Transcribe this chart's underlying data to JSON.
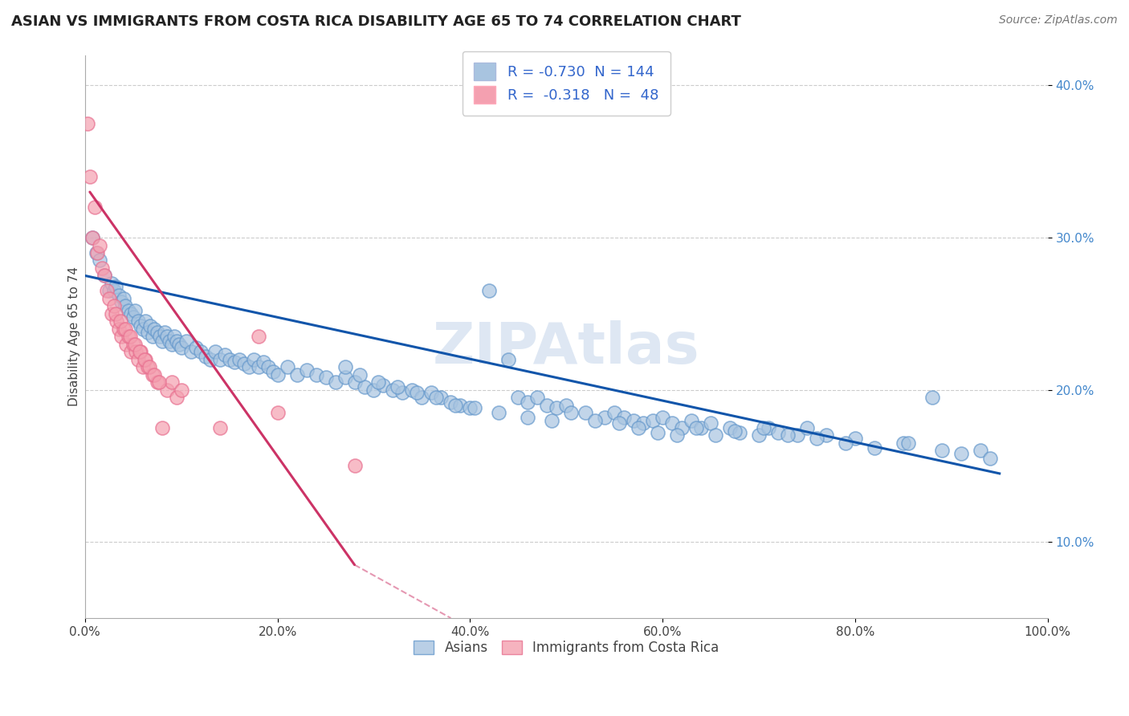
{
  "title": "ASIAN VS IMMIGRANTS FROM COSTA RICA DISABILITY AGE 65 TO 74 CORRELATION CHART",
  "source": "Source: ZipAtlas.com",
  "ylabel": "Disability Age 65 to 74",
  "xlim": [
    0,
    100
  ],
  "ylim": [
    5,
    42
  ],
  "watermark": "ZIPAtlas",
  "legend_labels": [
    "Asians",
    "Immigrants from Costa Rica"
  ],
  "legend_r_n": [
    {
      "R": "-0.730",
      "N": "144"
    },
    {
      "R": "-0.318",
      "N": "48"
    }
  ],
  "blue_color": "#A8C4E0",
  "pink_color": "#F4A0B0",
  "blue_edge_color": "#6699CC",
  "pink_edge_color": "#E87090",
  "blue_line_color": "#1155AA",
  "pink_line_color": "#CC3366",
  "blue_scatter": {
    "x": [
      0.8,
      1.2,
      1.5,
      2.0,
      2.5,
      2.8,
      3.0,
      3.2,
      3.5,
      3.8,
      4.0,
      4.2,
      4.5,
      4.8,
      5.0,
      5.2,
      5.5,
      5.8,
      6.0,
      6.3,
      6.5,
      6.8,
      7.0,
      7.2,
      7.5,
      7.8,
      8.0,
      8.3,
      8.5,
      8.8,
      9.0,
      9.3,
      9.5,
      9.8,
      10.0,
      10.5,
      11.0,
      11.5,
      12.0,
      12.5,
      13.0,
      13.5,
      14.0,
      14.5,
      15.0,
      15.5,
      16.0,
      16.5,
      17.0,
      17.5,
      18.0,
      18.5,
      19.0,
      19.5,
      20.0,
      21.0,
      22.0,
      23.0,
      24.0,
      25.0,
      26.0,
      27.0,
      28.0,
      29.0,
      30.0,
      31.0,
      32.0,
      33.0,
      34.0,
      35.0,
      36.0,
      37.0,
      38.0,
      39.0,
      40.0,
      42.0,
      44.0,
      45.0,
      46.0,
      47.0,
      48.0,
      49.0,
      50.0,
      52.0,
      54.0,
      55.0,
      56.0,
      57.0,
      58.0,
      59.0,
      60.0,
      61.0,
      62.0,
      63.0,
      64.0,
      65.0,
      67.0,
      68.0,
      70.0,
      71.0,
      72.0,
      74.0,
      75.0,
      77.0,
      80.0,
      85.0,
      88.0,
      93.0,
      27.0,
      28.5,
      30.5,
      32.5,
      34.5,
      36.5,
      38.5,
      40.5,
      43.0,
      46.0,
      48.5,
      50.5,
      53.0,
      55.5,
      57.5,
      59.5,
      61.5,
      63.5,
      65.5,
      67.5,
      70.5,
      73.0,
      76.0,
      79.0,
      82.0,
      85.5,
      89.0,
      91.0,
      94.0
    ],
    "y": [
      30.0,
      29.0,
      28.5,
      27.5,
      26.5,
      27.0,
      26.5,
      26.8,
      26.2,
      25.8,
      26.0,
      25.5,
      25.2,
      25.0,
      24.8,
      25.2,
      24.5,
      24.2,
      24.0,
      24.5,
      23.8,
      24.2,
      23.5,
      24.0,
      23.8,
      23.5,
      23.2,
      23.8,
      23.5,
      23.2,
      23.0,
      23.5,
      23.2,
      23.0,
      22.8,
      23.2,
      22.5,
      22.8,
      22.5,
      22.2,
      22.0,
      22.5,
      22.0,
      22.3,
      22.0,
      21.8,
      22.0,
      21.7,
      21.5,
      22.0,
      21.5,
      21.8,
      21.5,
      21.2,
      21.0,
      21.5,
      21.0,
      21.3,
      21.0,
      20.8,
      20.5,
      20.8,
      20.5,
      20.2,
      20.0,
      20.3,
      20.0,
      19.8,
      20.0,
      19.5,
      19.8,
      19.5,
      19.2,
      19.0,
      18.8,
      26.5,
      22.0,
      19.5,
      19.2,
      19.5,
      19.0,
      18.8,
      19.0,
      18.5,
      18.2,
      18.5,
      18.2,
      18.0,
      17.8,
      18.0,
      18.2,
      17.8,
      17.5,
      18.0,
      17.5,
      17.8,
      17.5,
      17.2,
      17.0,
      17.5,
      17.2,
      17.0,
      17.5,
      17.0,
      16.8,
      16.5,
      19.5,
      16.0,
      21.5,
      21.0,
      20.5,
      20.2,
      19.8,
      19.5,
      19.0,
      18.8,
      18.5,
      18.2,
      18.0,
      18.5,
      18.0,
      17.8,
      17.5,
      17.2,
      17.0,
      17.5,
      17.0,
      17.3,
      17.5,
      17.0,
      16.8,
      16.5,
      16.2,
      16.5,
      16.0,
      15.8,
      15.5
    ]
  },
  "pink_scatter": {
    "x": [
      0.3,
      0.5,
      0.8,
      1.0,
      1.3,
      1.5,
      1.8,
      2.0,
      2.3,
      2.5,
      2.8,
      3.0,
      3.3,
      3.5,
      3.8,
      4.0,
      4.3,
      4.5,
      4.8,
      5.0,
      5.3,
      5.5,
      5.8,
      6.0,
      6.3,
      6.5,
      7.0,
      7.5,
      8.0,
      8.5,
      9.0,
      9.5,
      10.0,
      3.2,
      3.7,
      4.2,
      4.7,
      5.2,
      5.7,
      6.2,
      6.7,
      7.2,
      7.7,
      14.0,
      18.0,
      20.0,
      28.0
    ],
    "y": [
      37.5,
      34.0,
      30.0,
      32.0,
      29.0,
      29.5,
      28.0,
      27.5,
      26.5,
      26.0,
      25.0,
      25.5,
      24.5,
      24.0,
      23.5,
      24.0,
      23.0,
      23.5,
      22.5,
      23.0,
      22.5,
      22.0,
      22.5,
      21.5,
      22.0,
      21.5,
      21.0,
      20.5,
      17.5,
      20.0,
      20.5,
      19.5,
      20.0,
      25.0,
      24.5,
      24.0,
      23.5,
      23.0,
      22.5,
      22.0,
      21.5,
      21.0,
      20.5,
      17.5,
      23.5,
      18.5,
      15.0
    ]
  },
  "blue_trend": {
    "x_start": 0,
    "x_end": 95,
    "y_start": 27.5,
    "y_end": 14.5
  },
  "pink_trend_solid": {
    "x_start": 0.5,
    "x_end": 28,
    "y_start": 33.0,
    "y_end": 8.5
  },
  "pink_trend_dashed": {
    "x_start": 28,
    "x_end": 38,
    "y_start": 8.5,
    "y_end": 5.0
  },
  "yticks": [
    10,
    20,
    30,
    40
  ],
  "ytick_labels": [
    "10.0%",
    "20.0%",
    "30.0%",
    "40.0%"
  ],
  "xticks": [
    0,
    20,
    40,
    60,
    80,
    100
  ],
  "xtick_labels": [
    "0.0%",
    "20.0%",
    "40.0%",
    "60.0%",
    "80.0%",
    "100.0%"
  ],
  "grid_color": "#CCCCCC",
  "background_color": "#FFFFFF",
  "title_fontsize": 13,
  "axis_label_fontsize": 11,
  "tick_fontsize": 11,
  "source_fontsize": 10,
  "watermark_fontsize": 52,
  "watermark_color": "#C8D8EC",
  "watermark_alpha": 0.6,
  "legend_text_color": "#3366CC",
  "ytick_color": "#4488CC"
}
